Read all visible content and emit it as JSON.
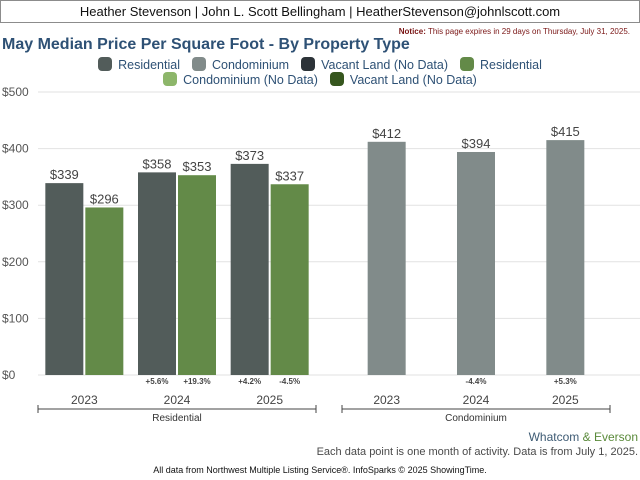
{
  "header": {
    "text": "Heather Stevenson | John L. Scott Bellingham | HeatherStevenson@johnlscott.com"
  },
  "notice": {
    "label": "Notice:",
    "text": "This page expires in 29 days on Thursday, July 31, 2025."
  },
  "colors": {
    "residential": "#525c5a",
    "condominium": "#818b8a",
    "vacant_land": "#2c3338",
    "residential_green": "#638a48",
    "condominium_no_data": "#8db66a",
    "vacant_land_no_data": "#36561e",
    "title": "#2e5175"
  },
  "legend_rows": [
    [
      {
        "label": "Residential",
        "color": "#525c5a"
      },
      {
        "label": "Condominium",
        "color": "#818b8a"
      },
      {
        "label": "Vacant Land (No Data)",
        "color": "#2c3338"
      },
      {
        "label": "Residential",
        "color": "#638a48"
      }
    ],
    [
      {
        "label": "Condominium (No Data)",
        "color": "#8db66a"
      },
      {
        "label": "Vacant Land (No Data)",
        "color": "#36561e"
      }
    ]
  ],
  "chart_data": {
    "type": "bar",
    "title": "May Median Price Per Square Foot - By Property Type",
    "ylim": [
      0,
      500
    ],
    "y_ticks": [
      0,
      100,
      200,
      300,
      400,
      500
    ],
    "y_tick_labels": [
      "$0",
      "$100",
      "$200",
      "$300",
      "$400",
      "$500"
    ],
    "grid": true,
    "groups": [
      {
        "name": "Residential",
        "categories": [
          "2023",
          "2024",
          "2025"
        ],
        "series": [
          {
            "values": [
              339,
              358,
              373
            ],
            "labels": [
              "$339",
              "$358",
              "$373"
            ],
            "color": "#525c5a",
            "changes": [
              "",
              "+5.6%",
              "+4.2%"
            ]
          },
          {
            "values": [
              296,
              353,
              337
            ],
            "labels": [
              "$296",
              "$353",
              "$337"
            ],
            "color": "#638a48",
            "changes": [
              "",
              "+19.3%",
              "-4.5%"
            ]
          }
        ]
      },
      {
        "name": "Condominium",
        "categories": [
          "2023",
          "2024",
          "2025"
        ],
        "series": [
          {
            "values": [
              412,
              394,
              415
            ],
            "labels": [
              "$412",
              "$394",
              "$415"
            ],
            "color": "#818b8a",
            "changes": [
              "",
              "-4.4%",
              "+5.3%"
            ]
          }
        ]
      }
    ]
  },
  "footer": {
    "location_a": "Whatcom",
    "amp": "&",
    "location_b": "Everson",
    "note": "Each data point is one month of activity. Data is from July 1, 2025.",
    "source": "All data from Northwest Multiple Listing Service®. InfoSparks © 2025 ShowingTime."
  }
}
